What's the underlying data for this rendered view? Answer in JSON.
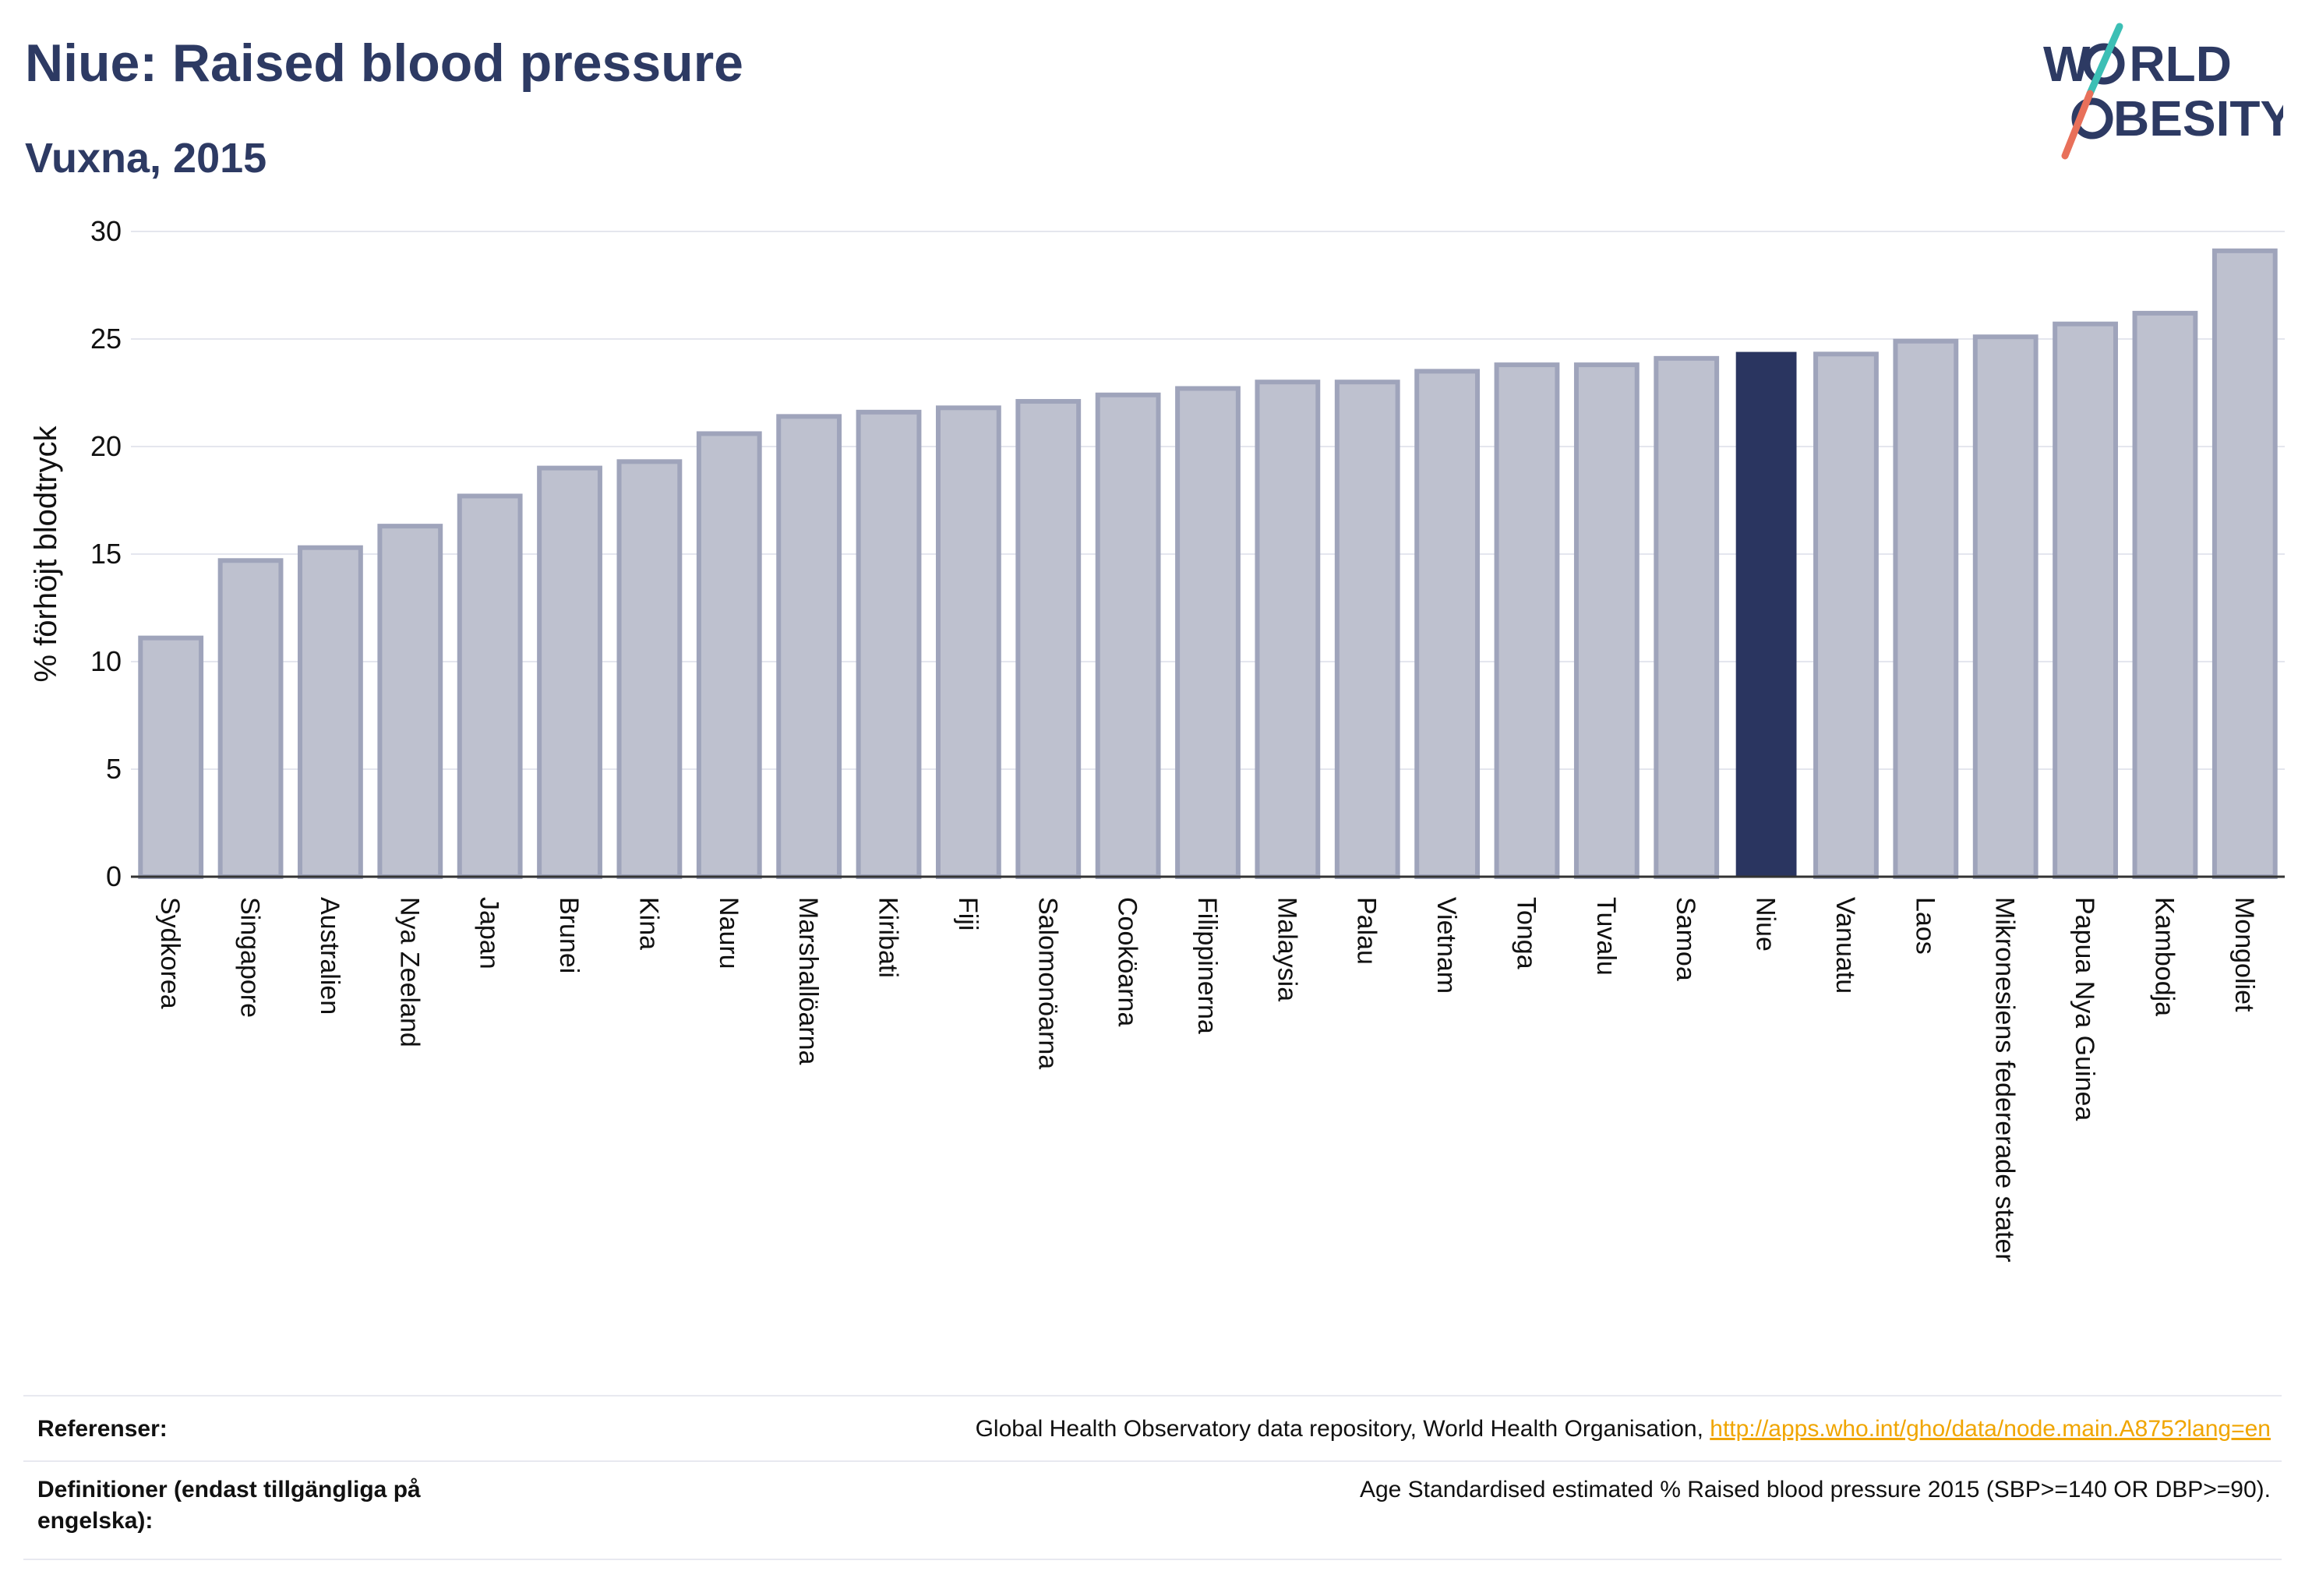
{
  "title": "Niue: Raised blood pressure",
  "subtitle": "Vuxna, 2015",
  "logo": {
    "line1": "W",
    "line1b": "RLD",
    "line2": "BESITY",
    "colors": {
      "text": "#2d3a63",
      "slash_top": "#3cbfb5",
      "slash_bottom": "#e8705a"
    }
  },
  "colors": {
    "bar": "#bec1cf",
    "bar_border": "#9fa4bb",
    "highlight": "#2a3560",
    "axis": "#333333",
    "grid": "#e4e6ee",
    "text": "#2d3a63",
    "link": "#f0a500"
  },
  "chart_data": {
    "type": "bar",
    "ylabel": "% förhöjt blodtryck",
    "ylim": [
      0,
      30
    ],
    "yticks": [
      0,
      5,
      10,
      15,
      20,
      25,
      30
    ],
    "grid": true,
    "highlight": "Niue",
    "categories": [
      "Sydkorea",
      "Singapore",
      "Australien",
      "Nya Zeeland",
      "Japan",
      "Brunei",
      "Kina",
      "Nauru",
      "Marshallöarna",
      "Kiribati",
      "Fiji",
      "Salomonöarna",
      "Cooköarna",
      "Filippinerna",
      "Malaysia",
      "Palau",
      "Vietnam",
      "Tonga",
      "Tuvalu",
      "Samoa",
      "Niue",
      "Vanuatu",
      "Laos",
      "Mikronesiens federerade stater",
      "Papua Nya Guinea",
      "Kambodja",
      "Mongoliet"
    ],
    "values": [
      11.1,
      14.7,
      15.3,
      16.3,
      17.7,
      19.0,
      19.3,
      20.6,
      21.4,
      21.6,
      21.8,
      22.1,
      22.4,
      22.7,
      23.0,
      23.0,
      23.5,
      23.8,
      23.8,
      24.1,
      24.4,
      24.3,
      24.9,
      25.1,
      25.7,
      26.2,
      29.1
    ]
  },
  "references": {
    "label": "Referenser:",
    "text": "Global Health Observatory data repository, World Health Organisation, ",
    "link": "http://apps.who.int/gho/data/node.main.A875?lang=en"
  },
  "definitions": {
    "label": "Definitioner (endast tillgängliga på engelska):",
    "text": "Age Standardised estimated % Raised blood pressure 2015 (SBP>=140 OR DBP>=90)."
  }
}
